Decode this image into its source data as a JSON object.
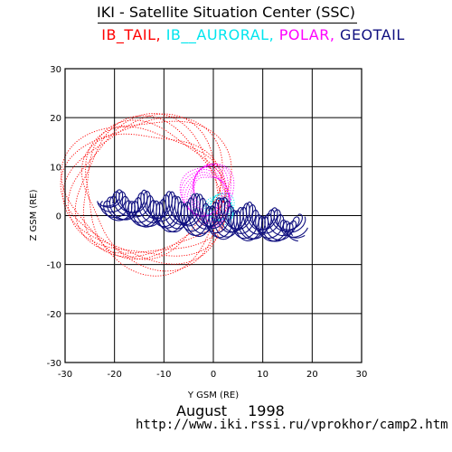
{
  "header": {
    "title": "IKI - Satellite Situation Center (SSC)",
    "legend": [
      {
        "label": "IB_TAIL,",
        "color": "#ff0000"
      },
      {
        "label": "IB__AURORAL,",
        "color": "#00e5ee"
      },
      {
        "label": "POLAR,",
        "color": "#ff00ff"
      },
      {
        "label": "GEOTAIL",
        "color": "#101080"
      }
    ]
  },
  "footer": {
    "date": "August 1998",
    "url": "http://www.iki.rssi.ru/vprokhor/camp2.htm"
  },
  "chart_data": {
    "type": "scatter",
    "title": "IKI - Satellite Situation Center (SSC)",
    "xlabel": "Y GSM (RE)",
    "ylabel": "Z GSM (RE)",
    "xlim": [
      -30,
      30
    ],
    "ylim": [
      -30,
      30
    ],
    "xticks": [
      -30,
      -20,
      -10,
      0,
      10,
      20,
      30
    ],
    "yticks": [
      -30,
      -20,
      -10,
      0,
      10,
      20,
      30
    ],
    "grid": true,
    "series": [
      {
        "name": "IB_TAIL",
        "color": "#ff0000",
        "shape": "ellipse-band",
        "center": [
          -13,
          5
        ],
        "semi_axes": [
          15,
          14
        ],
        "ring_width": 3,
        "tilt_deg": -8
      },
      {
        "name": "IB__AURORAL",
        "color": "#00e5ee",
        "shape": "ellipse-band",
        "center": [
          1.5,
          1.5
        ],
        "semi_axes": [
          2.4,
          2.6
        ],
        "ring_width": 1,
        "tilt_deg": 0
      },
      {
        "name": "POLAR",
        "color": "#ff00ff",
        "shape": "ellipse-band",
        "center": [
          -1,
          4.5
        ],
        "semi_axes": [
          4,
          5
        ],
        "ring_width": 2.5,
        "tilt_deg": 0
      },
      {
        "name": "GEOTAIL",
        "color": "#101080",
        "shape": "loops",
        "x_range": [
          -22,
          17.5
        ],
        "z_range": [
          -8,
          8
        ]
      }
    ]
  }
}
